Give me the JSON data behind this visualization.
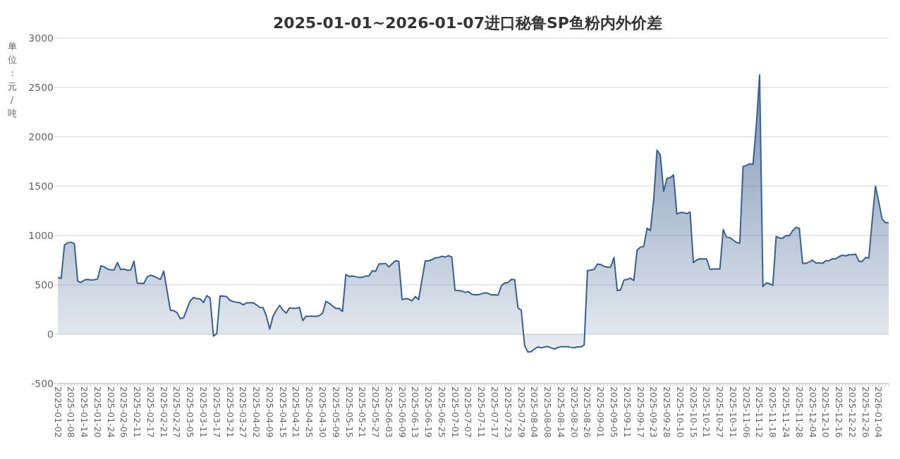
{
  "chart_data": {
    "type": "area",
    "title": "2025-01-01~2026-01-07进口秘鲁SP鱼粉内外价差",
    "ylabel": "单位：元/吨",
    "categories": [
      "2025-01-02",
      null,
      null,
      null,
      "2025-01-08",
      null,
      null,
      null,
      "2025-01-14",
      null,
      null,
      null,
      "2025-01-20",
      null,
      null,
      null,
      "2025-01-24",
      null,
      null,
      null,
      "2025-02-06",
      null,
      null,
      null,
      "2025-02-11",
      null,
      null,
      null,
      "2025-02-17",
      null,
      null,
      null,
      "2025-02-21",
      null,
      null,
      null,
      "2025-02-27",
      null,
      null,
      null,
      "2025-03-05",
      null,
      null,
      null,
      "2025-03-11",
      null,
      null,
      null,
      "2025-03-17",
      null,
      null,
      null,
      "2025-03-21",
      null,
      null,
      null,
      "2025-03-27",
      null,
      null,
      null,
      "2025-04-02",
      null,
      null,
      null,
      "2025-04-09",
      null,
      null,
      null,
      "2025-04-15",
      null,
      null,
      null,
      "2025-04-21",
      null,
      null,
      null,
      "2025-04-25",
      null,
      null,
      null,
      "2025-04-30",
      null,
      null,
      null,
      "2025-05-09",
      null,
      null,
      null,
      "2025-05-15",
      null,
      null,
      null,
      "2025-05-21",
      null,
      null,
      null,
      "2025-05-27",
      null,
      null,
      null,
      "2025-06-03",
      null,
      null,
      null,
      "2025-06-09",
      null,
      null,
      null,
      "2025-06-13",
      null,
      null,
      null,
      "2025-06-19",
      null,
      null,
      null,
      "2025-06-25",
      null,
      null,
      null,
      "2025-07-01",
      null,
      null,
      null,
      "2025-07-07",
      null,
      null,
      null,
      "2025-07-11",
      null,
      null,
      null,
      "2025-07-17",
      null,
      null,
      null,
      "2025-07-23",
      null,
      null,
      null,
      "2025-07-29",
      null,
      null,
      null,
      "2025-08-04",
      null,
      null,
      null,
      "2025-08-08",
      null,
      null,
      null,
      "2025-08-14",
      null,
      null,
      null,
      "2025-08-20",
      null,
      null,
      null,
      "2025-08-26",
      null,
      null,
      null,
      "2025-09-01",
      null,
      null,
      null,
      "2025-09-05",
      null,
      null,
      null,
      "2025-09-11",
      null,
      null,
      null,
      "2025-09-17",
      null,
      null,
      null,
      "2025-09-23",
      null,
      null,
      null,
      "2025-09-28",
      null,
      null,
      null,
      "2025-10-10",
      null,
      null,
      null,
      "2025-10-15",
      null,
      null,
      null,
      "2025-10-21",
      null,
      null,
      null,
      "2025-10-27",
      null,
      null,
      null,
      "2025-10-31",
      null,
      null,
      null,
      "2025-11-06",
      null,
      null,
      null,
      "2025-11-12",
      null,
      null,
      null,
      "2025-11-18",
      null,
      null,
      null,
      "2025-11-24",
      null,
      null,
      null,
      "2025-11-28",
      null,
      null,
      null,
      "2025-12-04",
      null,
      null,
      null,
      "2025-12-10",
      null,
      null,
      null,
      "2025-12-16",
      null,
      null,
      null,
      "2025-12-22",
      null,
      null,
      null,
      "2025-12-26",
      null,
      null,
      null,
      "2026-01-04",
      null,
      null,
      null
    ],
    "values": [
      576,
      564,
      905,
      926,
      933,
      917,
      536,
      524,
      548,
      555,
      548,
      552,
      560,
      693,
      683,
      660,
      652,
      652,
      726,
      655,
      660,
      648,
      650,
      740,
      517,
      514,
      514,
      581,
      598,
      588,
      571,
      555,
      640,
      440,
      243,
      238,
      219,
      157,
      167,
      255,
      338,
      371,
      360,
      357,
      321,
      390,
      367,
      -19,
      5,
      388,
      386,
      381,
      343,
      331,
      324,
      319,
      298,
      317,
      317,
      319,
      298,
      271,
      269,
      183,
      52,
      181,
      243,
      293,
      243,
      214,
      267,
      262,
      262,
      271,
      138,
      183,
      183,
      183,
      181,
      188,
      214,
      333,
      314,
      286,
      260,
      262,
      231,
      605,
      586,
      590,
      583,
      576,
      576,
      590,
      590,
      643,
      636,
      712,
      712,
      717,
      681,
      714,
      745,
      740,
      350,
      360,
      355,
      338,
      381,
      350,
      552,
      743,
      743,
      755,
      774,
      776,
      790,
      781,
      795,
      783,
      445,
      443,
      438,
      424,
      431,
      405,
      400,
      400,
      410,
      419,
      414,
      398,
      400,
      395,
      493,
      519,
      524,
      555,
      552,
      267,
      243,
      -114,
      -181,
      -176,
      -150,
      -129,
      -138,
      -131,
      -124,
      -138,
      -150,
      -136,
      -126,
      -126,
      -126,
      -133,
      -138,
      -129,
      -129,
      -110,
      645,
      650,
      655,
      711,
      706,
      687,
      680,
      680,
      778,
      441,
      448,
      548,
      555,
      567,
      543,
      852,
      883,
      888,
      1074,
      1050,
      1364,
      1864,
      1817,
      1448,
      1579,
      1586,
      1614,
      1217,
      1233,
      1233,
      1221,
      1238,
      726,
      752,
      764,
      762,
      762,
      657,
      660,
      660,
      660,
      1060,
      983,
      979,
      955,
      929,
      921,
      1698,
      1710,
      1726,
      1721,
      2110,
      2626,
      483,
      519,
      512,
      495,
      990,
      974,
      974,
      1000,
      998,
      1050,
      1083,
      1071,
      717,
      717,
      733,
      750,
      721,
      724,
      717,
      745,
      745,
      764,
      764,
      786,
      800,
      793,
      805,
      805,
      810,
      738,
      738,
      776,
      774,
      1150,
      1500,
      1340,
      1169,
      1131,
      1131
    ],
    "color": "#3a5f8f",
    "ylim": [
      -500,
      3000
    ],
    "yticks": [
      -500,
      0,
      500,
      1000,
      1500,
      2000,
      2500,
      3000
    ],
    "grid": "y"
  }
}
